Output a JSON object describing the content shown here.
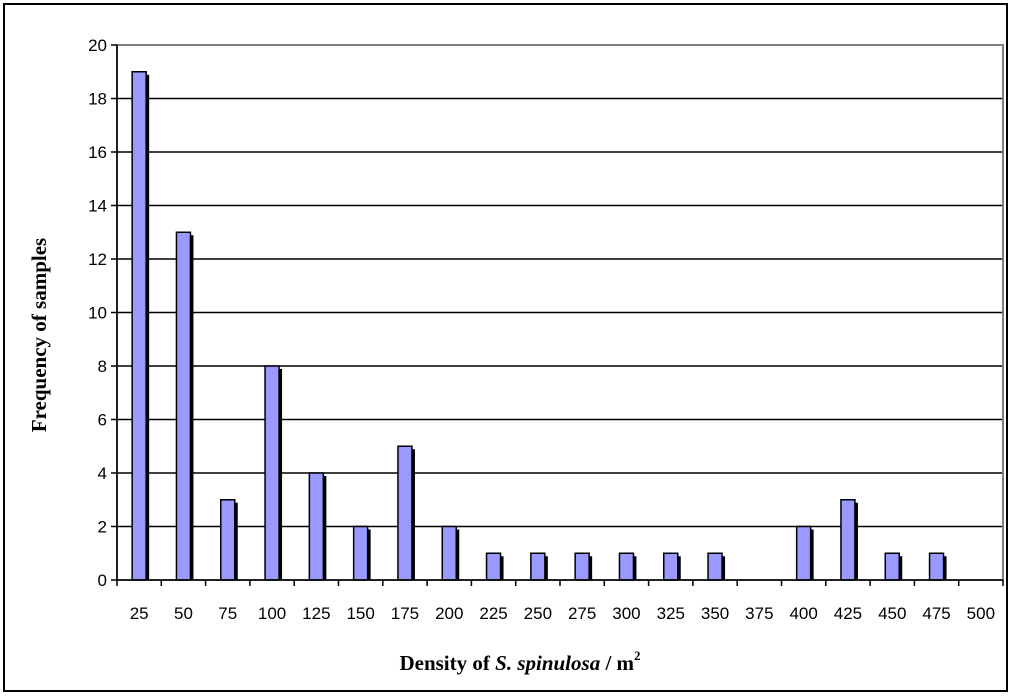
{
  "chart_data": {
    "type": "bar",
    "xlabel_parts": {
      "prefix": "Density of ",
      "species": "S. spinulosa",
      "unit": " / m",
      "unit_exponent": "2"
    },
    "ylabel": "Frequency of samples",
    "categories": [
      "25",
      "50",
      "75",
      "100",
      "125",
      "150",
      "175",
      "200",
      "225",
      "250",
      "275",
      "300",
      "325",
      "350",
      "375",
      "400",
      "425",
      "450",
      "475",
      "500"
    ],
    "values": [
      19,
      13,
      3,
      8,
      4,
      2,
      5,
      2,
      1,
      1,
      1,
      1,
      1,
      1,
      0,
      2,
      3,
      1,
      1,
      0
    ],
    "ylim": [
      0,
      20
    ],
    "yticks": [
      0,
      2,
      4,
      6,
      8,
      10,
      12,
      14,
      16,
      18,
      20
    ],
    "grid": true,
    "colors": {
      "bar": "#9999ff",
      "bar_edge": "#000000",
      "grid": "#000000",
      "plot_border": "#808080"
    }
  }
}
